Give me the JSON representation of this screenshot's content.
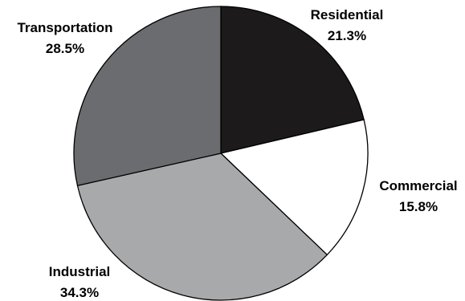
{
  "chart_data": {
    "type": "pie",
    "categories": [
      "Residential",
      "Commercial",
      "Industrial",
      "Transportation"
    ],
    "values": [
      21.3,
      15.8,
      34.3,
      28.5
    ],
    "value_labels": [
      "21.3%",
      "15.8%",
      "34.3%",
      "28.5%"
    ],
    "colors": [
      "#1c1a1b",
      "#ffffff",
      "#a8a9ab",
      "#6b6c6f"
    ],
    "start_angle": "12 o'clock",
    "direction": "clockwise",
    "legend": "none"
  }
}
